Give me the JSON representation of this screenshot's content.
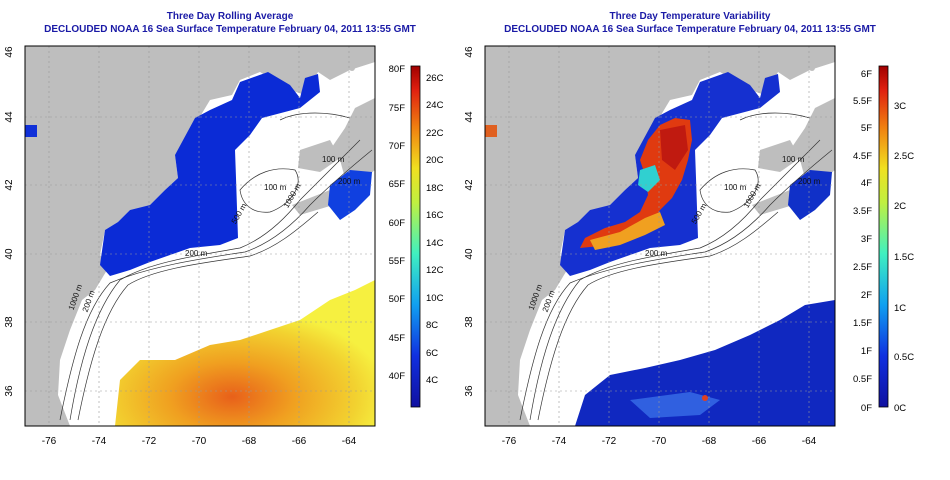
{
  "panels": [
    {
      "title": "Three Day Rolling Average",
      "subtitle": "DECLOUDED NOAA 16 Sea Surface Temperature February 04, 2011 13:55 GMT",
      "colorbar_left_labels": [
        "80F",
        "75F",
        "70F",
        "65F",
        "60F",
        "55F",
        "50F",
        "45F",
        "40F"
      ],
      "colorbar_right_labels": [
        "26C",
        "24C",
        "22C",
        "20C",
        "18C",
        "16C",
        "14C",
        "12C",
        "10C",
        "8C",
        "6C",
        "4C"
      ],
      "contour_labels": [
        "100 m",
        "100 m",
        "200 m",
        "500 m",
        "1000 m",
        "200 m",
        "1000 m",
        "200 m"
      ]
    },
    {
      "title": "Three Day Temperature Variability",
      "subtitle": "DECLOUDED NOAA 16 Sea Surface Temperature February 04, 2011 13:55 GMT",
      "colorbar_left_labels": [
        "6F",
        "5.5F",
        "5F",
        "4.5F",
        "4F",
        "3.5F",
        "3F",
        "2.5F",
        "2F",
        "1.5F",
        "1F",
        "0.5F",
        "0F"
      ],
      "colorbar_right_labels": [
        "3C",
        "2.5C",
        "2C",
        "1.5C",
        "1C",
        "0.5C",
        "0C"
      ],
      "contour_labels": [
        "100 m",
        "100 m",
        "200 m",
        "500 m",
        "1000 m",
        "200 m",
        "1000 m",
        "200 m"
      ]
    }
  ],
  "axes": {
    "lat_ticks": [
      "46",
      "44",
      "42",
      "40",
      "38",
      "36"
    ],
    "lon_ticks": [
      "-76",
      "-74",
      "-72",
      "-70",
      "-68",
      "-66",
      "-64"
    ]
  },
  "colors": {
    "land": "#bebebe",
    "title": "#1a1aa6",
    "cold": "#0b2bd6",
    "warm": "#f0a020"
  }
}
